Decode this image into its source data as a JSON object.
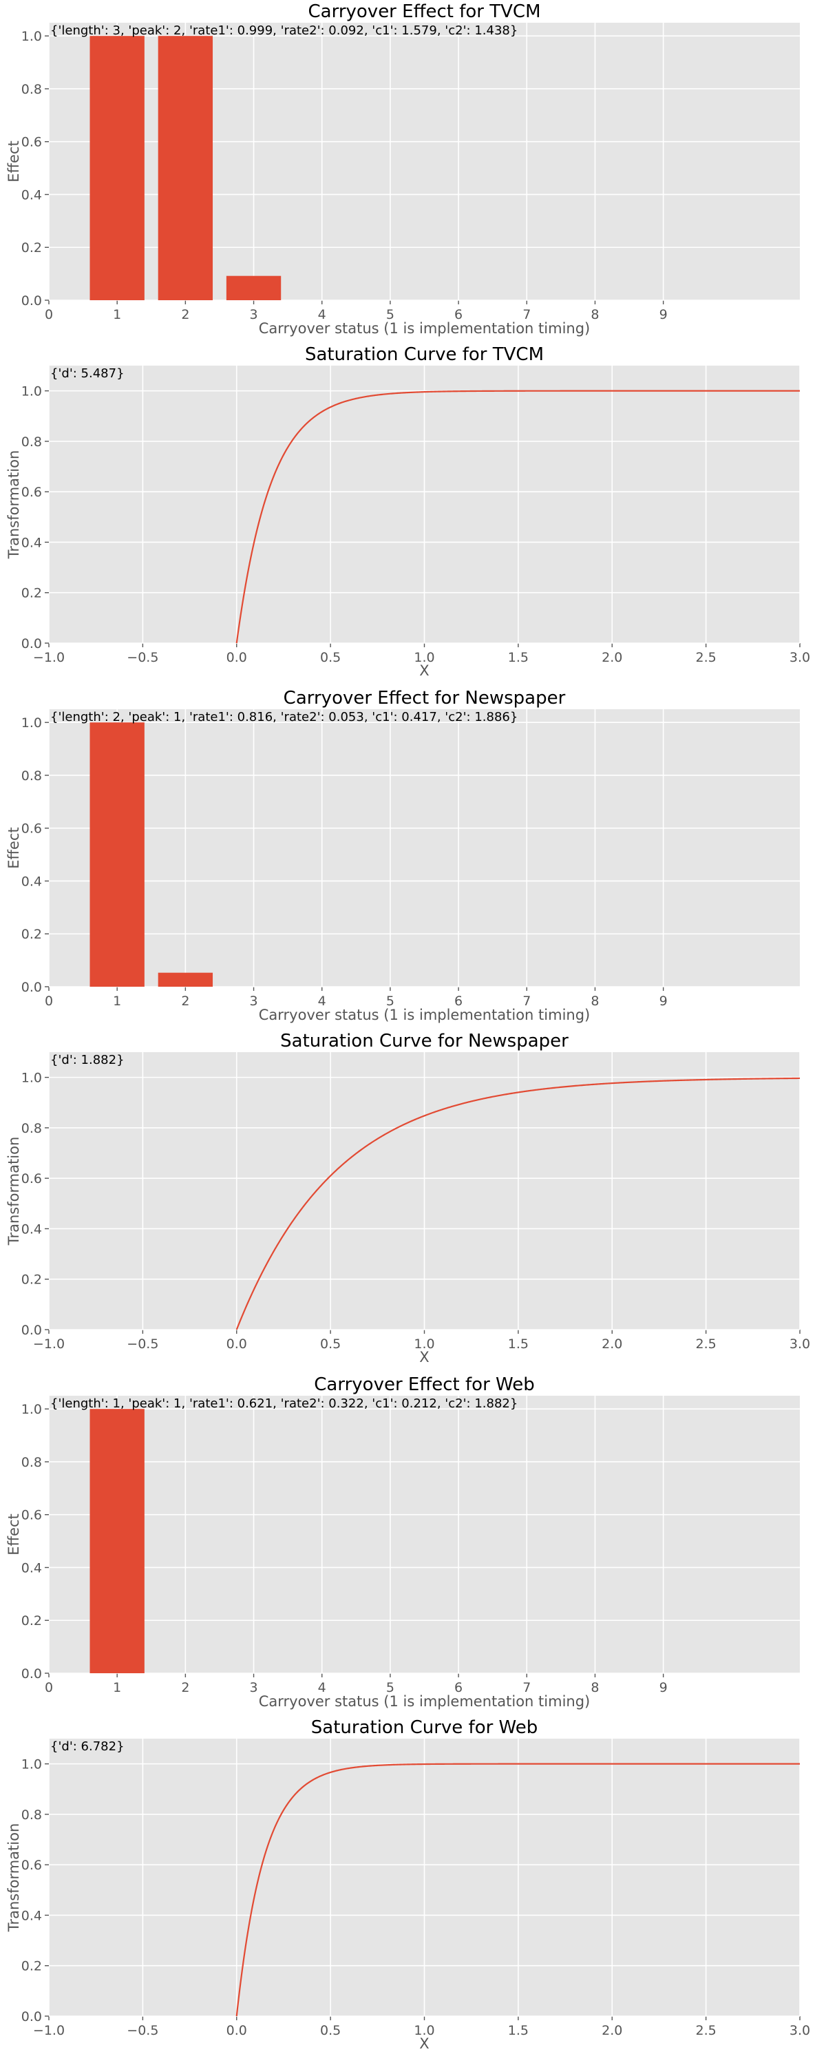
{
  "colors": {
    "accent": "#e24a33",
    "plot_background": "#e5e5e5",
    "grid": "#ffffff"
  },
  "chart_data": [
    {
      "type": "bar",
      "title": "Carryover Effect for TVCM",
      "annotation": "{'length': 3, 'peak': 2, 'rate1': 0.999, 'rate2': 0.092, 'c1': 1.579, 'c2': 1.438}",
      "xlabel": "Carryover status (1 is implementation timing)",
      "ylabel": "Effect",
      "categories": [
        1,
        2,
        3
      ],
      "values": [
        1.0,
        1.0,
        0.092
      ],
      "xlim": [
        0,
        11
      ],
      "ylim": [
        0,
        1.05
      ],
      "xticks": [
        "0",
        "1",
        "2",
        "3",
        "4",
        "5",
        "6",
        "7",
        "8",
        "9"
      ],
      "yticks": [
        "0.0",
        "0.2",
        "0.4",
        "0.6",
        "0.8",
        "1.0"
      ],
      "grid": true
    },
    {
      "type": "line",
      "title": "Saturation Curve for TVCM",
      "annotation": "{'d': 5.487}",
      "xlabel": "X",
      "ylabel": "Transformation",
      "d": 5.487,
      "function": "1 - exp(-d * x)",
      "x_range": [
        0,
        3
      ],
      "xlim": [
        -1,
        3
      ],
      "ylim": [
        0,
        1.1
      ],
      "xticks": [
        "−1.0",
        "−0.5",
        "0.0",
        "0.5",
        "1.0",
        "1.5",
        "2.0",
        "2.5",
        "3.0"
      ],
      "yticks": [
        "0.0",
        "0.2",
        "0.4",
        "0.6",
        "0.8",
        "1.0"
      ],
      "grid": true
    },
    {
      "type": "bar",
      "title": "Carryover Effect for Newspaper",
      "annotation": "{'length': 2, 'peak': 1, 'rate1': 0.816, 'rate2': 0.053, 'c1': 0.417, 'c2': 1.886}",
      "xlabel": "Carryover status (1 is implementation timing)",
      "ylabel": "Effect",
      "categories": [
        1,
        2
      ],
      "values": [
        1.0,
        0.053
      ],
      "xlim": [
        0,
        11
      ],
      "ylim": [
        0,
        1.05
      ],
      "xticks": [
        "0",
        "1",
        "2",
        "3",
        "4",
        "5",
        "6",
        "7",
        "8",
        "9"
      ],
      "yticks": [
        "0.0",
        "0.2",
        "0.4",
        "0.6",
        "0.8",
        "1.0"
      ],
      "grid": true
    },
    {
      "type": "line",
      "title": "Saturation Curve for Newspaper",
      "annotation": "{'d': 1.882}",
      "xlabel": "X",
      "ylabel": "Transformation",
      "d": 1.882,
      "function": "1 - exp(-d * x)",
      "x_range": [
        0,
        3
      ],
      "xlim": [
        -1,
        3
      ],
      "ylim": [
        0,
        1.1
      ],
      "xticks": [
        "−1.0",
        "−0.5",
        "0.0",
        "0.5",
        "1.0",
        "1.5",
        "2.0",
        "2.5",
        "3.0"
      ],
      "yticks": [
        "0.0",
        "0.2",
        "0.4",
        "0.6",
        "0.8",
        "1.0"
      ],
      "grid": true
    },
    {
      "type": "bar",
      "title": "Carryover Effect for Web",
      "annotation": "{'length': 1, 'peak': 1, 'rate1': 0.621, 'rate2': 0.322, 'c1': 0.212, 'c2': 1.882}",
      "xlabel": "Carryover status (1 is implementation timing)",
      "ylabel": "Effect",
      "categories": [
        1
      ],
      "values": [
        1.0
      ],
      "xlim": [
        0,
        11
      ],
      "ylim": [
        0,
        1.05
      ],
      "xticks": [
        "0",
        "1",
        "2",
        "3",
        "4",
        "5",
        "6",
        "7",
        "8",
        "9"
      ],
      "yticks": [
        "0.0",
        "0.2",
        "0.4",
        "0.6",
        "0.8",
        "1.0"
      ],
      "grid": true
    },
    {
      "type": "line",
      "title": "Saturation Curve for Web",
      "annotation": "{'d': 6.782}",
      "xlabel": "X",
      "ylabel": "Transformation",
      "d": 6.782,
      "function": "1 - exp(-d * x)",
      "x_range": [
        0,
        3
      ],
      "xlim": [
        -1,
        3
      ],
      "ylim": [
        0,
        1.1
      ],
      "xticks": [
        "−1.0",
        "−0.5",
        "0.0",
        "0.5",
        "1.0",
        "1.5",
        "2.0",
        "2.5",
        "3.0"
      ],
      "yticks": [
        "0.0",
        "0.2",
        "0.4",
        "0.6",
        "0.8",
        "1.0"
      ],
      "grid": true
    }
  ]
}
